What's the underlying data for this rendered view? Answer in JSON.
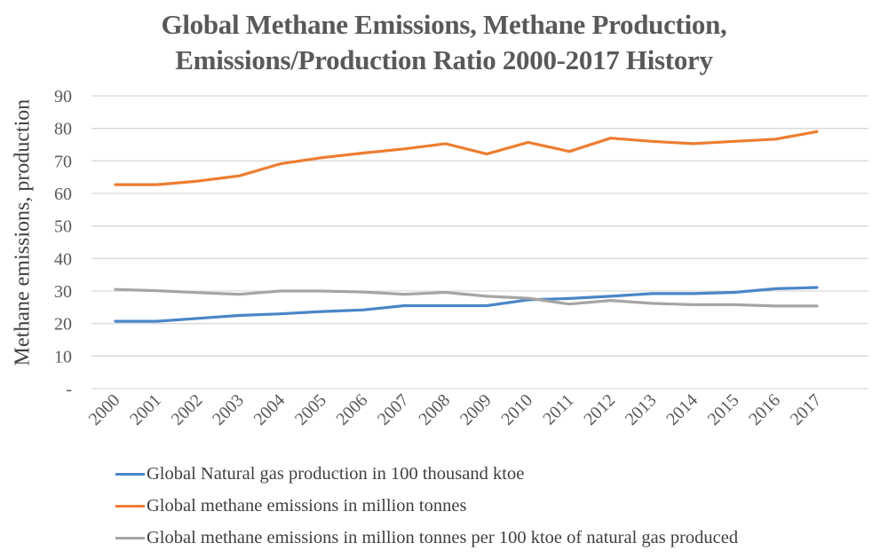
{
  "chart_data": {
    "type": "line",
    "title": "Global Methane Emissions, Methane Production, Emissions/Production Ratio 2000-2017 History",
    "title_lines": [
      "Global Methane Emissions, Methane Production,",
      "Emissions/Production Ratio 2000-2017 History"
    ],
    "xlabel": "",
    "ylabel": "Methane emissions, production",
    "ylim": [
      0,
      90
    ],
    "yticks": [
      0,
      10,
      20,
      30,
      40,
      50,
      60,
      70,
      80,
      90
    ],
    "ytick_labels": [
      "-",
      "10",
      "20",
      "30",
      "40",
      "50",
      "60",
      "70",
      "80",
      "90"
    ],
    "grid": true,
    "legend_position": "bottom",
    "x": [
      "2000",
      "2001",
      "2002",
      "2003",
      "2004",
      "2005",
      "2006",
      "2007",
      "2008",
      "2009",
      "2010",
      "2011",
      "2012",
      "2013",
      "2014",
      "2015",
      "2016",
      "2017"
    ],
    "series": [
      {
        "name": "Global Natural gas production in 100 thousand ktoe",
        "color": "#4a86c8",
        "values": [
          20.7,
          20.7,
          21.6,
          22.5,
          23.0,
          23.7,
          24.2,
          25.5,
          25.5,
          25.5,
          27.3,
          27.7,
          28.4,
          29.2,
          29.2,
          29.6,
          30.7,
          31.1
        ]
      },
      {
        "name": "Global methane emissions in million tonnes",
        "color": "#ed7d31",
        "values": [
          62.7,
          62.7,
          63.8,
          65.4,
          69.1,
          71.0,
          72.4,
          73.7,
          75.3,
          72.1,
          75.7,
          72.9,
          77.0,
          76.0,
          75.3,
          76.0,
          76.7,
          79.0
        ]
      },
      {
        "name": "Global methane emissions in million tonnes per 100 ktoe of natural gas produced",
        "color": "#a5a5a5",
        "values": [
          30.5,
          30.1,
          29.5,
          29.0,
          30.0,
          30.0,
          29.7,
          29.0,
          29.6,
          28.4,
          27.8,
          26.0,
          27.1,
          26.2,
          25.8,
          25.8,
          25.4,
          25.4
        ]
      }
    ]
  }
}
